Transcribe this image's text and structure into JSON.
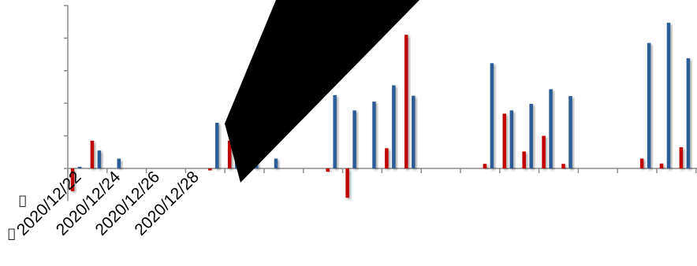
{
  "chart_data": {
    "type": "bar",
    "title": "",
    "xlabel": "",
    "ylabel": "",
    "x_tick_labels": [
      "2020/12/22",
      "2020/12/24",
      "2020/12/26",
      "2020/12/28"
    ],
    "ylim": [
      -1,
      5
    ],
    "grid": false,
    "legend": "none",
    "series": [
      {
        "color": "#c00000",
        "values": [
          -0.7,
          0.85,
          0,
          0,
          0,
          0,
          0,
          -0.06,
          0.85,
          0.55,
          0,
          0,
          0,
          -0.1,
          -0.9,
          0,
          0.62,
          4.1,
          0,
          0,
          0,
          0.14,
          1.68,
          0.52,
          1.0,
          0.14,
          0,
          0,
          0,
          0.3,
          0.15,
          0.65,
          1.1,
          -0.4
        ]
      },
      {
        "color": "#2e5c97",
        "values": [
          0.05,
          0.55,
          0.3,
          0,
          0,
          0,
          0,
          1.4,
          1.2,
          0.6,
          0.3,
          0,
          0,
          2.25,
          1.78,
          2.05,
          2.55,
          2.23,
          0,
          0,
          0,
          3.23,
          1.78,
          1.98,
          2.43,
          2.22,
          0,
          0,
          0,
          3.85,
          4.47,
          3.38,
          2.7,
          1.55
        ]
      }
    ]
  },
  "overlay": {
    "color": "#000000"
  },
  "side_glyphs": [
    "\u0000",
    "\u0000"
  ]
}
